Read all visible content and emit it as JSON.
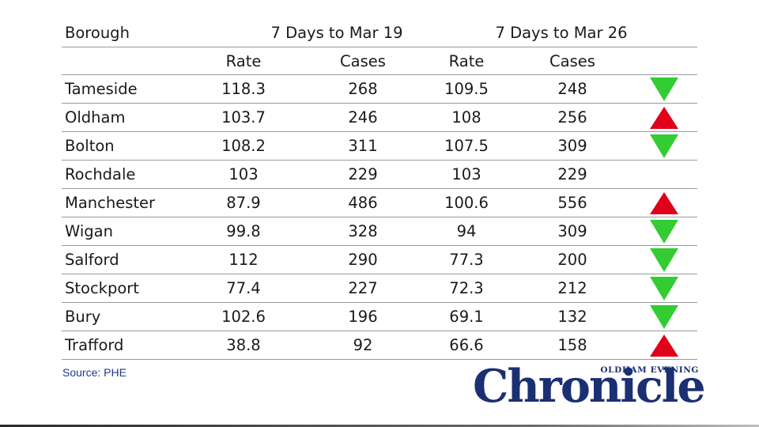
{
  "table": {
    "header": {
      "borough": "Borough",
      "period1": "7 Days to Mar 19",
      "period2": "7 Days to Mar 26",
      "rate": "Rate",
      "cases": "Cases"
    },
    "rows": [
      {
        "borough": "Tameside",
        "rate1": "118.3",
        "cases1": "268",
        "rate2": "109.5",
        "cases2": "248",
        "trend": "down"
      },
      {
        "borough": "Oldham",
        "rate1": "103.7",
        "cases1": "246",
        "rate2": "108",
        "cases2": "256",
        "trend": "up"
      },
      {
        "borough": "Bolton",
        "rate1": "108.2",
        "cases1": "311",
        "rate2": "107.5",
        "cases2": "309",
        "trend": "down"
      },
      {
        "borough": "Rochdale",
        "rate1": "103",
        "cases1": "229",
        "rate2": "103",
        "cases2": "229",
        "trend": "none"
      },
      {
        "borough": "Manchester",
        "rate1": "87.9",
        "cases1": "486",
        "rate2": "100.6",
        "cases2": "556",
        "trend": "up"
      },
      {
        "borough": "Wigan",
        "rate1": "99.8",
        "cases1": "328",
        "rate2": "94",
        "cases2": "309",
        "trend": "down"
      },
      {
        "borough": "Salford",
        "rate1": "112",
        "cases1": "290",
        "rate2": "77.3",
        "cases2": "200",
        "trend": "down"
      },
      {
        "borough": "Stockport",
        "rate1": "77.4",
        "cases1": "227",
        "rate2": "72.3",
        "cases2": "212",
        "trend": "down"
      },
      {
        "borough": "Bury",
        "rate1": "102.6",
        "cases1": "196",
        "rate2": "69.1",
        "cases2": "132",
        "trend": "down"
      },
      {
        "borough": "Trafford",
        "rate1": "38.8",
        "cases1": "92",
        "rate2": "66.6",
        "cases2": "158",
        "trend": "up"
      }
    ]
  },
  "source": "Source: PHE",
  "logo": {
    "small_text": "OLDHAM EVENING",
    "big_text": "Chronicle"
  },
  "colors": {
    "up": "#e0001a",
    "down": "#33cc33",
    "logo": "#1b2f73",
    "source": "#1f3a8a"
  },
  "icons": {
    "up": "red-up-triangle-icon",
    "down": "green-down-triangle-icon"
  }
}
